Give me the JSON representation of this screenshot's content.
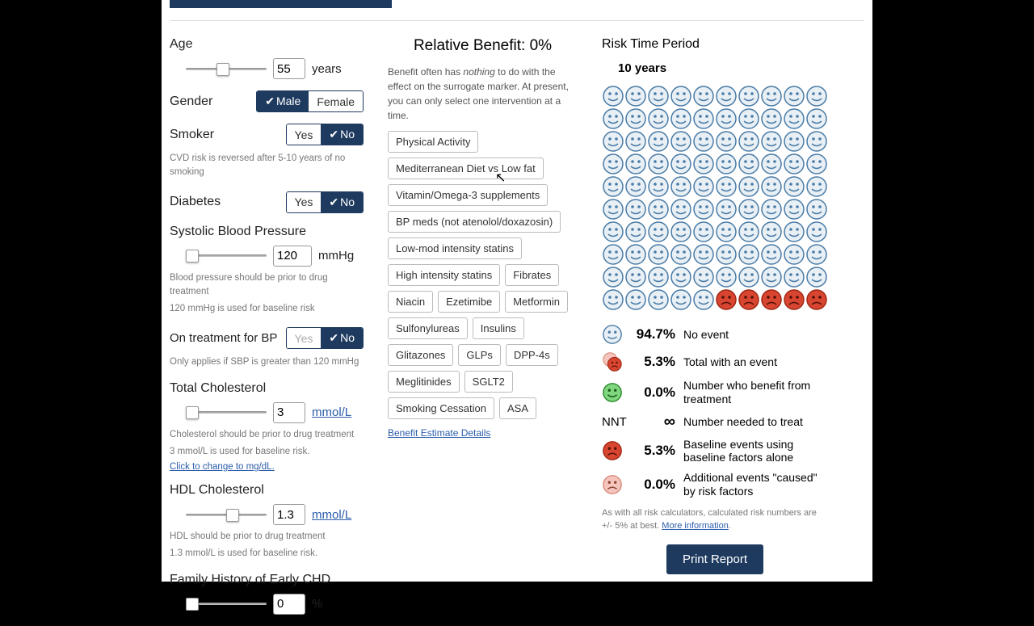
{
  "age": {
    "label": "Age",
    "value": "55",
    "unit": "years"
  },
  "gender": {
    "label": "Gender",
    "options": [
      "Male",
      "Female"
    ],
    "selected": 0
  },
  "smoker": {
    "label": "Smoker",
    "options": [
      "Yes",
      "No"
    ],
    "selected": 1,
    "help": "CVD risk is reversed after 5-10 years of no smoking"
  },
  "diabetes": {
    "label": "Diabetes",
    "options": [
      "Yes",
      "No"
    ],
    "selected": 1
  },
  "sbp": {
    "label": "Systolic Blood Pressure",
    "value": "120",
    "unit": "mmHg",
    "help1": "Blood pressure should be prior to drug treatment",
    "help2": "120 mmHg is used for baseline risk"
  },
  "bp_treat": {
    "label": "On treatment for BP",
    "options": [
      "Yes",
      "No"
    ],
    "selected": 1,
    "disabled_yes": true,
    "help": "Only applies if SBP is greater than 120 mmHg"
  },
  "tc": {
    "label": "Total Cholesterol",
    "value": "3",
    "unit": "mmol/L",
    "help1": "Cholesterol should be prior to drug treatment",
    "help2": "3 mmol/L is used for baseline risk.",
    "change_link": "Click to change to mg/dL."
  },
  "hdl": {
    "label": "HDL Cholesterol",
    "value": "1.3",
    "unit": "mmol/L",
    "help1": "HDL should be prior to drug treatment",
    "help2": "1.3 mmol/L is used for baseline risk."
  },
  "fhx": {
    "label": "Family History of Early CHD",
    "value": "0",
    "unit": "%"
  },
  "benefit": {
    "title_prefix": "Relative Benefit:  ",
    "title_value": "0%",
    "text_pre": "Benefit often has ",
    "text_em": "nothing",
    "text_post": " to do with the effect on the surrogate marker. At present, you can only select one intervention at a time.",
    "interventions": [
      "Physical Activity",
      "Mediterranean Diet vs Low fat",
      "Vitamin/Omega-3 supplements",
      "BP meds (not atenolol/doxazosin)",
      "Low-mod intensity statins",
      "High intensity statins",
      "Fibrates",
      "Niacin",
      "Ezetimibe",
      "Metformin",
      "Sulfonylureas",
      "Insulins",
      "Glitazones",
      "GLPs",
      "DPP-4s",
      "Meglitinides",
      "SGLT2",
      "Smoking Cessation",
      "ASA"
    ],
    "details_link": "Benefit Estimate Details"
  },
  "risk": {
    "title": "Risk Time Period",
    "period": "10 years",
    "total_faces": 100,
    "bad_faces": 5,
    "legend": [
      {
        "type": "happy",
        "pct": "94.7%",
        "label": "No event"
      },
      {
        "type": "sad_overlap",
        "pct": "5.3%",
        "label": "Total with an event"
      },
      {
        "type": "green",
        "pct": "0.0%",
        "label": "Number who benefit from treatment"
      },
      {
        "type": "nnt",
        "pct": "∞",
        "label": "Number needed to treat"
      },
      {
        "type": "sad",
        "pct": "5.3%",
        "label": "Baseline events using baseline factors alone"
      },
      {
        "type": "pink",
        "pct": "0.0%",
        "label": "Additional events \"caused\" by risk factors"
      }
    ],
    "disclaimer_pre": "As with all risk calculators, calculated risk numbers are +/- 5% at best. ",
    "disclaimer_link": "More information",
    "print": "Print Report"
  }
}
